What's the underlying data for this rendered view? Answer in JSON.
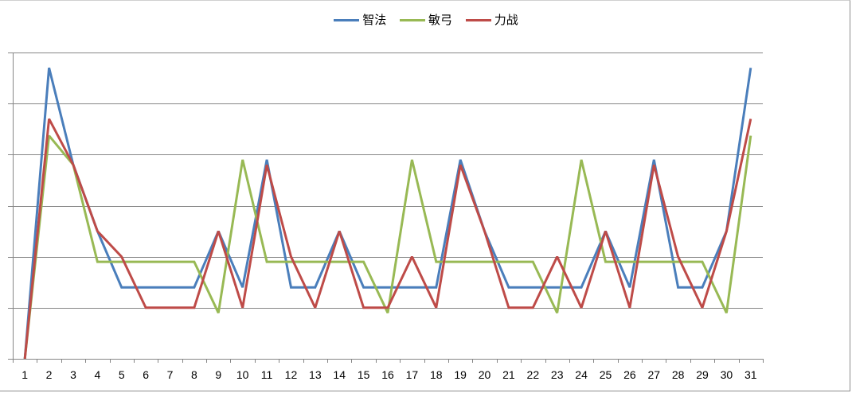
{
  "chart_data": {
    "type": "line",
    "title": "",
    "xlabel": "",
    "ylabel": "",
    "y_tick_labels_visible": false,
    "ylim": [
      0,
      6
    ],
    "grid": true,
    "legend_position": "top",
    "categories": [
      "1",
      "2",
      "3",
      "4",
      "5",
      "6",
      "7",
      "8",
      "9",
      "10",
      "11",
      "12",
      "13",
      "14",
      "15",
      "16",
      "17",
      "18",
      "19",
      "20",
      "21",
      "22",
      "23",
      "24",
      "25",
      "26",
      "27",
      "28",
      "29",
      "30",
      "31"
    ],
    "series": [
      {
        "name": "智法",
        "color": "#4a7ebb",
        "values": [
          0,
          5.7,
          3.8,
          2.5,
          1.4,
          1.4,
          1.4,
          1.4,
          2.5,
          1.4,
          3.9,
          1.4,
          1.4,
          2.5,
          1.4,
          1.4,
          1.4,
          1.4,
          3.9,
          2.5,
          1.4,
          1.4,
          1.4,
          1.4,
          2.5,
          1.4,
          3.9,
          1.4,
          1.4,
          2.5,
          5.7
        ]
      },
      {
        "name": "敏弓",
        "color": "#98b954",
        "values": [
          0,
          4.37,
          3.8,
          1.9,
          1.9,
          1.9,
          1.9,
          1.9,
          0.9,
          3.9,
          1.9,
          1.9,
          1.9,
          1.9,
          1.9,
          0.9,
          3.9,
          1.9,
          1.9,
          1.9,
          1.9,
          1.9,
          0.9,
          3.9,
          1.9,
          1.9,
          1.9,
          1.9,
          1.9,
          0.9,
          4.37
        ]
      },
      {
        "name": "力战",
        "color": "#be4b48",
        "values": [
          0,
          4.7,
          3.8,
          2.5,
          2.0,
          1.0,
          1.0,
          1.0,
          2.5,
          1.0,
          3.8,
          2.0,
          1.0,
          2.5,
          1.0,
          1.0,
          2.0,
          1.0,
          3.8,
          2.5,
          1.0,
          1.0,
          2.0,
          1.0,
          2.5,
          1.0,
          3.8,
          2.0,
          1.0,
          2.5,
          4.7
        ]
      }
    ]
  },
  "legend": {
    "items": [
      {
        "label": "智法",
        "color": "#4a7ebb"
      },
      {
        "label": "敏弓",
        "color": "#98b954"
      },
      {
        "label": "力战",
        "color": "#be4b48"
      }
    ]
  }
}
